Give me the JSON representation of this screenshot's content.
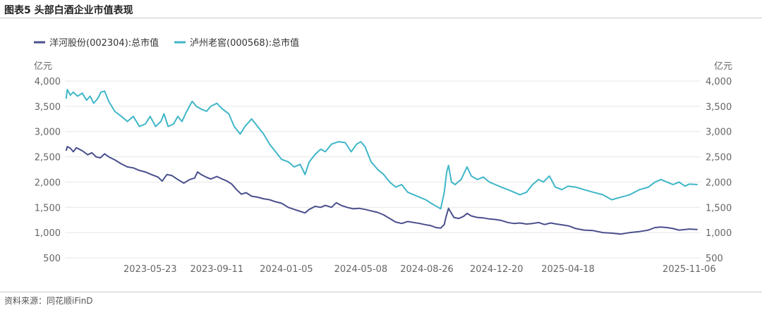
{
  "figure_title": "图表5 头部白酒企业市值表现",
  "source_note": "资料来源：同花顺iFinD",
  "colors": {
    "series1": "#4a4f8c",
    "series2": "#3fb6c8",
    "grid": "#e6e6e6"
  },
  "chart_data": {
    "type": "line",
    "title": "",
    "xlabel": "",
    "ylabel_left": "亿元",
    "ylabel_right": "亿元",
    "ylim": [
      500,
      4000
    ],
    "y_ticks": [
      "4,000",
      "3,500",
      "3,000",
      "2,500",
      "2,000",
      "1,500",
      "1,000",
      "500"
    ],
    "y_tick_values": [
      4000,
      3500,
      3000,
      2500,
      2000,
      1500,
      1000,
      500
    ],
    "x_range": [
      "2023-01-01",
      "2025-11-25"
    ],
    "x_ticks": [
      "2023-05-23",
      "2023-09-11",
      "2024-01-05",
      "2024-05-08",
      "2024-08-26",
      "2024-12-20",
      "2025-04-18",
      "2025-11-06"
    ],
    "grid": true,
    "legend_position": "top-left",
    "series": [
      {
        "name": "洋河股份(002304):总市值",
        "points": [
          [
            "2023-01-03",
            2620
          ],
          [
            "2023-01-05",
            2700
          ],
          [
            "2023-01-10",
            2670
          ],
          [
            "2023-01-15",
            2600
          ],
          [
            "2023-01-20",
            2680
          ],
          [
            "2023-01-30",
            2620
          ],
          [
            "2023-02-08",
            2540
          ],
          [
            "2023-02-15",
            2580
          ],
          [
            "2023-02-22",
            2500
          ],
          [
            "2023-03-01",
            2480
          ],
          [
            "2023-03-08",
            2560
          ],
          [
            "2023-03-15",
            2500
          ],
          [
            "2023-03-25",
            2440
          ],
          [
            "2023-04-05",
            2360
          ],
          [
            "2023-04-15",
            2300
          ],
          [
            "2023-04-25",
            2280
          ],
          [
            "2023-05-05",
            2230
          ],
          [
            "2023-05-15",
            2200
          ],
          [
            "2023-05-25",
            2150
          ],
          [
            "2023-06-05",
            2100
          ],
          [
            "2023-06-12",
            2020
          ],
          [
            "2023-06-20",
            2150
          ],
          [
            "2023-06-28",
            2130
          ],
          [
            "2023-07-08",
            2050
          ],
          [
            "2023-07-18",
            1980
          ],
          [
            "2023-07-28",
            2050
          ],
          [
            "2023-08-05",
            2080
          ],
          [
            "2023-08-10",
            2200
          ],
          [
            "2023-08-16",
            2150
          ],
          [
            "2023-08-24",
            2100
          ],
          [
            "2023-09-01",
            2060
          ],
          [
            "2023-09-11",
            2110
          ],
          [
            "2023-09-20",
            2060
          ],
          [
            "2023-09-28",
            2020
          ],
          [
            "2023-10-06",
            1960
          ],
          [
            "2023-10-14",
            1850
          ],
          [
            "2023-10-22",
            1760
          ],
          [
            "2023-10-30",
            1790
          ],
          [
            "2023-11-08",
            1720
          ],
          [
            "2023-11-18",
            1700
          ],
          [
            "2023-11-28",
            1670
          ],
          [
            "2023-12-08",
            1650
          ],
          [
            "2023-12-18",
            1610
          ],
          [
            "2023-12-28",
            1580
          ],
          [
            "2024-01-08",
            1500
          ],
          [
            "2024-01-18",
            1460
          ],
          [
            "2024-01-28",
            1420
          ],
          [
            "2024-02-05",
            1390
          ],
          [
            "2024-02-12",
            1460
          ],
          [
            "2024-02-22",
            1520
          ],
          [
            "2024-03-02",
            1500
          ],
          [
            "2024-03-10",
            1540
          ],
          [
            "2024-03-20",
            1500
          ],
          [
            "2024-03-28",
            1590
          ],
          [
            "2024-04-05",
            1540
          ],
          [
            "2024-04-15",
            1500
          ],
          [
            "2024-04-25",
            1470
          ],
          [
            "2024-05-05",
            1480
          ],
          [
            "2024-05-15",
            1460
          ],
          [
            "2024-05-25",
            1430
          ],
          [
            "2024-06-05",
            1400
          ],
          [
            "2024-06-15",
            1350
          ],
          [
            "2024-06-25",
            1280
          ],
          [
            "2024-07-05",
            1210
          ],
          [
            "2024-07-15",
            1180
          ],
          [
            "2024-07-25",
            1220
          ],
          [
            "2024-08-04",
            1200
          ],
          [
            "2024-08-14",
            1180
          ],
          [
            "2024-08-22",
            1160
          ],
          [
            "2024-09-01",
            1140
          ],
          [
            "2024-09-10",
            1100
          ],
          [
            "2024-09-18",
            1090
          ],
          [
            "2024-09-24",
            1160
          ],
          [
            "2024-09-27",
            1320
          ],
          [
            "2024-10-01",
            1480
          ],
          [
            "2024-10-05",
            1400
          ],
          [
            "2024-10-10",
            1300
          ],
          [
            "2024-10-18",
            1280
          ],
          [
            "2024-10-26",
            1320
          ],
          [
            "2024-11-01",
            1380
          ],
          [
            "2024-11-08",
            1330
          ],
          [
            "2024-11-18",
            1300
          ],
          [
            "2024-11-28",
            1290
          ],
          [
            "2024-12-08",
            1270
          ],
          [
            "2024-12-18",
            1260
          ],
          [
            "2024-12-28",
            1240
          ],
          [
            "2025-01-08",
            1200
          ],
          [
            "2025-01-18",
            1180
          ],
          [
            "2025-01-28",
            1190
          ],
          [
            "2025-02-08",
            1170
          ],
          [
            "2025-02-18",
            1180
          ],
          [
            "2025-02-28",
            1200
          ],
          [
            "2025-03-10",
            1160
          ],
          [
            "2025-03-20",
            1190
          ],
          [
            "2025-03-30",
            1170
          ],
          [
            "2025-04-10",
            1150
          ],
          [
            "2025-04-20",
            1130
          ],
          [
            "2025-05-01",
            1080
          ],
          [
            "2025-05-15",
            1050
          ],
          [
            "2025-05-30",
            1040
          ],
          [
            "2025-06-15",
            1000
          ],
          [
            "2025-06-30",
            990
          ],
          [
            "2025-07-15",
            970
          ],
          [
            "2025-07-30",
            1000
          ],
          [
            "2025-08-15",
            1020
          ],
          [
            "2025-08-30",
            1050
          ],
          [
            "2025-09-10",
            1100
          ],
          [
            "2025-09-20",
            1110
          ],
          [
            "2025-09-30",
            1100
          ],
          [
            "2025-10-10",
            1080
          ],
          [
            "2025-10-20",
            1050
          ],
          [
            "2025-10-30",
            1060
          ],
          [
            "2025-11-06",
            1070
          ],
          [
            "2025-11-20",
            1060
          ]
        ]
      },
      {
        "name": "泸州老窖(000568):总市值",
        "points": [
          [
            "2023-01-03",
            3650
          ],
          [
            "2023-01-05",
            3830
          ],
          [
            "2023-01-10",
            3720
          ],
          [
            "2023-01-15",
            3780
          ],
          [
            "2023-01-22",
            3700
          ],
          [
            "2023-01-30",
            3760
          ],
          [
            "2023-02-06",
            3620
          ],
          [
            "2023-02-12",
            3700
          ],
          [
            "2023-02-18",
            3560
          ],
          [
            "2023-02-25",
            3660
          ],
          [
            "2023-03-02",
            3780
          ],
          [
            "2023-03-08",
            3800
          ],
          [
            "2023-03-15",
            3600
          ],
          [
            "2023-03-25",
            3400
          ],
          [
            "2023-04-05",
            3300
          ],
          [
            "2023-04-15",
            3200
          ],
          [
            "2023-04-25",
            3300
          ],
          [
            "2023-05-05",
            3100
          ],
          [
            "2023-05-15",
            3150
          ],
          [
            "2023-05-23",
            3300
          ],
          [
            "2023-06-01",
            3100
          ],
          [
            "2023-06-10",
            3200
          ],
          [
            "2023-06-15",
            3350
          ],
          [
            "2023-06-22",
            3100
          ],
          [
            "2023-07-01",
            3150
          ],
          [
            "2023-07-08",
            3300
          ],
          [
            "2023-07-15",
            3200
          ],
          [
            "2023-07-22",
            3380
          ],
          [
            "2023-08-01",
            3600
          ],
          [
            "2023-08-08",
            3500
          ],
          [
            "2023-08-15",
            3450
          ],
          [
            "2023-08-25",
            3400
          ],
          [
            "2023-09-01",
            3500
          ],
          [
            "2023-09-11",
            3560
          ],
          [
            "2023-09-20",
            3450
          ],
          [
            "2023-10-01",
            3350
          ],
          [
            "2023-10-10",
            3100
          ],
          [
            "2023-10-20",
            2950
          ],
          [
            "2023-10-28",
            3100
          ],
          [
            "2023-11-08",
            3250
          ],
          [
            "2023-11-18",
            3100
          ],
          [
            "2023-11-28",
            2950
          ],
          [
            "2023-12-08",
            2750
          ],
          [
            "2023-12-18",
            2600
          ],
          [
            "2023-12-28",
            2450
          ],
          [
            "2024-01-08",
            2400
          ],
          [
            "2024-01-18",
            2300
          ],
          [
            "2024-01-28",
            2350
          ],
          [
            "2024-02-05",
            2150
          ],
          [
            "2024-02-12",
            2400
          ],
          [
            "2024-02-22",
            2550
          ],
          [
            "2024-03-02",
            2650
          ],
          [
            "2024-03-10",
            2600
          ],
          [
            "2024-03-20",
            2750
          ],
          [
            "2024-04-01",
            2800
          ],
          [
            "2024-04-12",
            2780
          ],
          [
            "2024-04-22",
            2600
          ],
          [
            "2024-05-01",
            2750
          ],
          [
            "2024-05-08",
            2800
          ],
          [
            "2024-05-15",
            2700
          ],
          [
            "2024-05-25",
            2400
          ],
          [
            "2024-06-05",
            2250
          ],
          [
            "2024-06-15",
            2150
          ],
          [
            "2024-06-25",
            2000
          ],
          [
            "2024-07-05",
            1900
          ],
          [
            "2024-07-15",
            1950
          ],
          [
            "2024-07-25",
            1800
          ],
          [
            "2024-08-04",
            1750
          ],
          [
            "2024-08-14",
            1700
          ],
          [
            "2024-08-24",
            1650
          ],
          [
            "2024-09-05",
            1560
          ],
          [
            "2024-09-14",
            1500
          ],
          [
            "2024-09-18",
            1470
          ],
          [
            "2024-09-24",
            1800
          ],
          [
            "2024-09-28",
            2200
          ],
          [
            "2024-10-01",
            2330
          ],
          [
            "2024-10-06",
            2000
          ],
          [
            "2024-10-12",
            1950
          ],
          [
            "2024-10-22",
            2050
          ],
          [
            "2024-11-01",
            2300
          ],
          [
            "2024-11-08",
            2120
          ],
          [
            "2024-11-18",
            2050
          ],
          [
            "2024-11-28",
            2100
          ],
          [
            "2024-12-08",
            2000
          ],
          [
            "2024-12-18",
            1950
          ],
          [
            "2024-12-28",
            1900
          ],
          [
            "2025-01-08",
            1850
          ],
          [
            "2025-01-18",
            1800
          ],
          [
            "2025-01-28",
            1750
          ],
          [
            "2025-02-08",
            1800
          ],
          [
            "2025-02-18",
            1950
          ],
          [
            "2025-02-28",
            2050
          ],
          [
            "2025-03-08",
            2000
          ],
          [
            "2025-03-18",
            2120
          ],
          [
            "2025-03-28",
            1900
          ],
          [
            "2025-04-08",
            1850
          ],
          [
            "2025-04-18",
            1920
          ],
          [
            "2025-05-01",
            1900
          ],
          [
            "2025-05-15",
            1850
          ],
          [
            "2025-05-30",
            1800
          ],
          [
            "2025-06-15",
            1750
          ],
          [
            "2025-06-30",
            1650
          ],
          [
            "2025-07-15",
            1700
          ],
          [
            "2025-07-30",
            1750
          ],
          [
            "2025-08-15",
            1850
          ],
          [
            "2025-08-30",
            1900
          ],
          [
            "2025-09-10",
            2000
          ],
          [
            "2025-09-20",
            2050
          ],
          [
            "2025-09-30",
            2000
          ],
          [
            "2025-10-10",
            1950
          ],
          [
            "2025-10-20",
            2000
          ],
          [
            "2025-10-30",
            1920
          ],
          [
            "2025-11-06",
            1960
          ],
          [
            "2025-11-20",
            1950
          ]
        ]
      }
    ]
  }
}
